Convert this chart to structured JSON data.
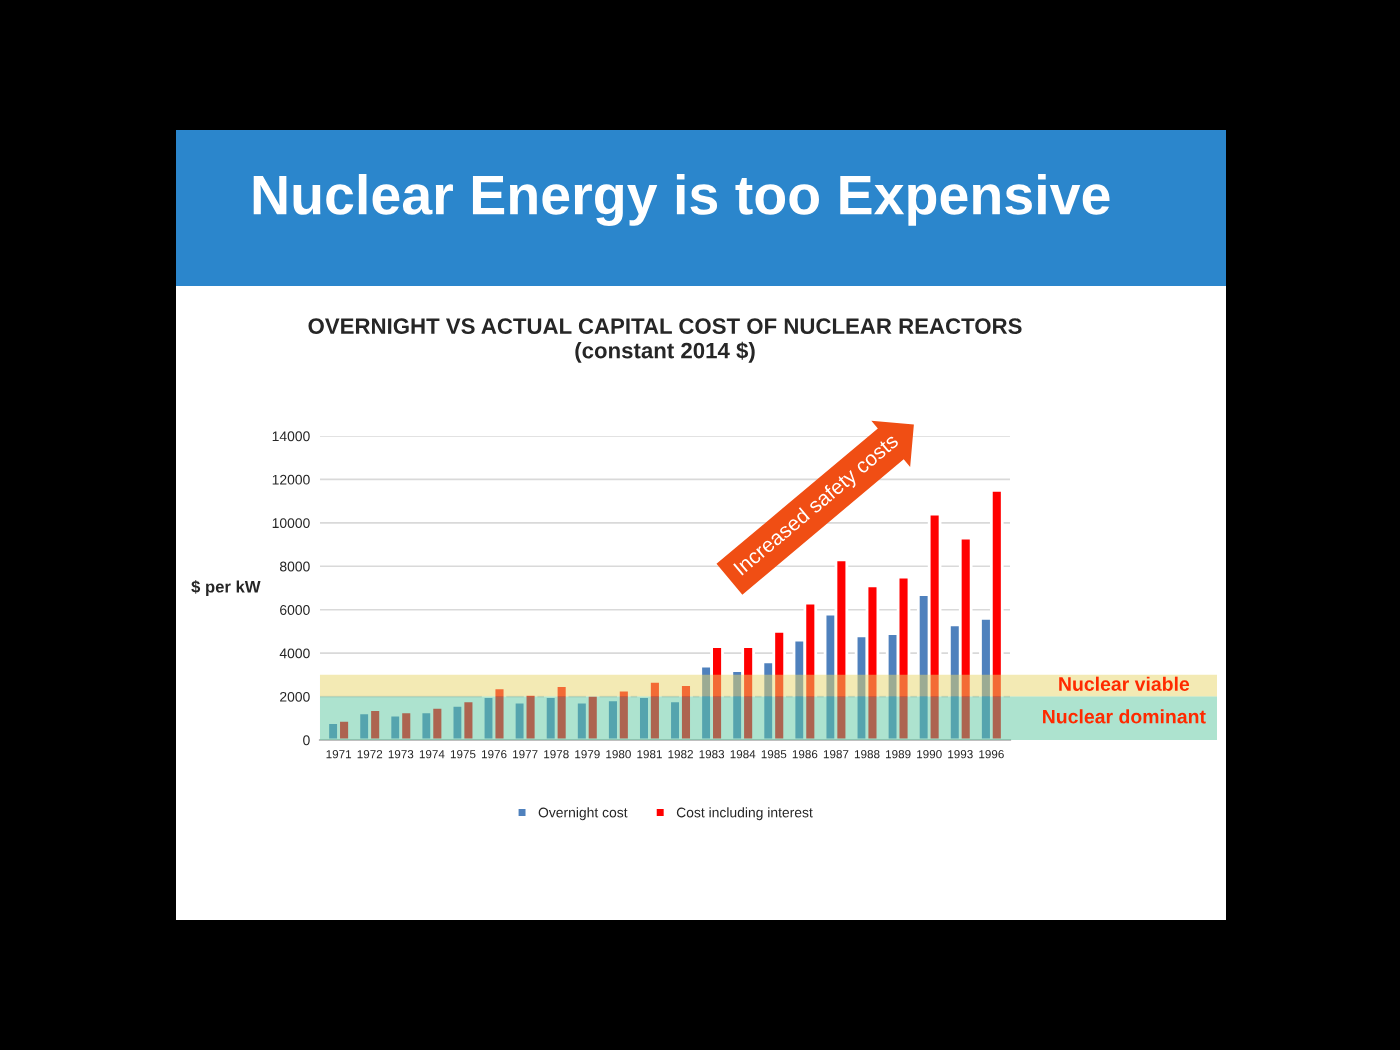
{
  "chart_data": {
    "type": "bar",
    "title": "Nuclear Energy is too Expensive",
    "subtitle": "OVERNIGHT VS ACTUAL CAPITAL COST OF NUCLEAR REACTORS\n(constant 2014 $)",
    "ylabel": "$ per kW",
    "categories": [
      "1971",
      "1972",
      "1973",
      "1974",
      "1975",
      "1976",
      "1977",
      "1978",
      "1979",
      "1980",
      "1981",
      "1982",
      "1983",
      "1984",
      "1985",
      "1986",
      "1987",
      "1988",
      "1989",
      "1990",
      "1993",
      "1996"
    ],
    "series": [
      {
        "name": "Overnight cost",
        "color": "#4f81bd",
        "values": [
          800,
          1250,
          1150,
          1300,
          1600,
          2000,
          1750,
          2000,
          1750,
          1850,
          2000,
          1800,
          3400,
          3200,
          3600,
          4600,
          5800,
          4800,
          4900,
          6700,
          5300,
          5600
        ]
      },
      {
        "name": "Cost including interest",
        "color": "#ff0000",
        "values": [
          900,
          1400,
          1300,
          1500,
          1800,
          2400,
          2100,
          2500,
          2050,
          2300,
          2700,
          2550,
          4300,
          4300,
          5000,
          6300,
          8300,
          7100,
          7500,
          10400,
          9300,
          11500
        ]
      }
    ],
    "ylim": [
      0,
      14000
    ],
    "yticks": [
      0,
      2000,
      4000,
      6000,
      8000,
      10000,
      12000,
      14000
    ],
    "grid": "y",
    "legend": "bottom",
    "bands": [
      {
        "axis": "y",
        "from": 2000,
        "to": 3000,
        "label": "Nuclear viable",
        "color": "#e8d66a"
      },
      {
        "axis": "y",
        "from": 0,
        "to": 2000,
        "label": "Nuclear dominant",
        "color": "#5cc8a0"
      }
    ],
    "annotations": [
      "Increased safety costs"
    ]
  }
}
